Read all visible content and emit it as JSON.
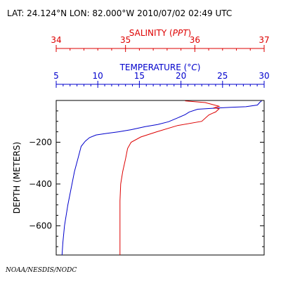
{
  "header": {
    "location_line": "LAT: 24.124°N LON: 82.000°W 2010/07/02 02:49 UTC"
  },
  "footer": {
    "credit": "NOAA/NESDIS/NODC"
  },
  "colors": {
    "salinity": "#dd0000",
    "temperature": "#0000cc",
    "axes": "#000000"
  },
  "chart_data": {
    "type": "line",
    "title": "",
    "ylabel": "DEPTH (METERS)",
    "y_axis_inverted": true,
    "ylim": [
      0,
      740
    ],
    "y_ticks": [
      -200,
      -400,
      -600
    ],
    "y_tick_labels": [
      "−200",
      "−400",
      "−600"
    ],
    "grid": false,
    "legend": "none",
    "x_axes": [
      {
        "id": "salinity",
        "label_prefix": "SALINITY (",
        "label_unit": "PPT",
        "label_suffix": ")",
        "range": [
          34,
          37
        ],
        "ticks": [
          34,
          35,
          36,
          37
        ],
        "tick_labels": [
          "34",
          "35",
          "36",
          "37"
        ],
        "color": "#dd0000"
      },
      {
        "id": "temperature",
        "label_prefix": "TEMPERATURE (",
        "label_unit": "°C",
        "label_suffix": ")",
        "range": [
          5,
          30
        ],
        "ticks": [
          5,
          10,
          15,
          20,
          25,
          30
        ],
        "tick_labels": [
          "5",
          "10",
          "15",
          "20",
          "25",
          "30"
        ],
        "color": "#0000cc"
      }
    ],
    "series": [
      {
        "id": "temperature",
        "axis": "temperature",
        "points": [
          [
            29.7,
            2
          ],
          [
            29.5,
            8
          ],
          [
            29.2,
            22
          ],
          [
            27.8,
            30
          ],
          [
            26.0,
            33
          ],
          [
            24.0,
            37
          ],
          [
            22.0,
            42
          ],
          [
            21.0,
            55
          ],
          [
            20.5,
            68
          ],
          [
            19.5,
            85
          ],
          [
            18.5,
            102
          ],
          [
            17.2,
            115
          ],
          [
            15.7,
            125
          ],
          [
            14.0,
            140
          ],
          [
            12.5,
            150
          ],
          [
            11.0,
            158
          ],
          [
            9.8,
            165
          ],
          [
            9.0,
            178
          ],
          [
            8.5,
            195
          ],
          [
            8.0,
            220
          ],
          [
            7.6,
            280
          ],
          [
            7.2,
            340
          ],
          [
            6.8,
            420
          ],
          [
            6.4,
            500
          ],
          [
            6.0,
            600
          ],
          [
            5.8,
            680
          ],
          [
            5.7,
            740
          ]
        ]
      },
      {
        "id": "salinity",
        "axis": "salinity",
        "points": [
          [
            35.86,
            2
          ],
          [
            36.15,
            10
          ],
          [
            36.35,
            28
          ],
          [
            36.28,
            35
          ],
          [
            36.35,
            40
          ],
          [
            36.3,
            55
          ],
          [
            36.25,
            62
          ],
          [
            36.2,
            70
          ],
          [
            36.1,
            100
          ],
          [
            35.75,
            120
          ],
          [
            35.45,
            150
          ],
          [
            35.22,
            175
          ],
          [
            35.08,
            200
          ],
          [
            35.03,
            230
          ],
          [
            35.0,
            280
          ],
          [
            34.96,
            340
          ],
          [
            34.93,
            400
          ],
          [
            34.92,
            480
          ],
          [
            34.92,
            560
          ],
          [
            34.92,
            650
          ],
          [
            34.92,
            740
          ]
        ]
      }
    ]
  }
}
